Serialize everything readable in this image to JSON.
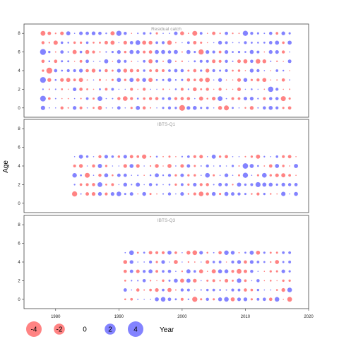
{
  "chart_data": {
    "type": "scatter",
    "subtype": "bubble-residuals",
    "ylabel": "Age",
    "xlabel": "Year",
    "xlim": [
      1975,
      2020
    ],
    "x_ticks": [
      1980,
      1990,
      2000,
      2010,
      2020
    ],
    "ylim": [
      -1,
      9
    ],
    "y_ticks": [
      0,
      2,
      4,
      6,
      8
    ],
    "ages": [
      0,
      1,
      2,
      3,
      4,
      5,
      6,
      7,
      8
    ],
    "colors": {
      "negative": "#ff5a5a",
      "positive": "#5a5aff",
      "alpha": 0.75,
      "panel_border": "#444444"
    },
    "legend": {
      "values": [
        -4,
        -2,
        0,
        2,
        4
      ],
      "labels": [
        "-4",
        "-2",
        "0",
        "2",
        "4"
      ],
      "placement": "bottom"
    },
    "panels": [
      {
        "title": "Residual catch",
        "years": [
          1978,
          2017
        ],
        "ages": [
          0,
          8
        ],
        "emphasis": [
          {
            "year": 1978,
            "age": 0,
            "value": 1.4
          },
          {
            "year": 1978,
            "age": 1,
            "value": 2.4
          },
          {
            "year": 1978,
            "age": 3,
            "value": 2.5
          },
          {
            "year": 1978,
            "age": 6,
            "value": 2.6
          },
          {
            "year": 1978,
            "age": 8,
            "value": -1.7
          },
          {
            "year": 1979,
            "age": 4,
            "value": -2.6
          },
          {
            "year": 1980,
            "age": 7,
            "value": -1.4
          },
          {
            "year": 1983,
            "age": 6,
            "value": -1.3
          },
          {
            "year": 1987,
            "age": 1,
            "value": 1.7
          },
          {
            "year": 1990,
            "age": 8,
            "value": 2.0
          },
          {
            "year": 1991,
            "age": 1,
            "value": -1.6
          },
          {
            "year": 1993,
            "age": 7,
            "value": 1.7
          },
          {
            "year": 1998,
            "age": 7,
            "value": -1.5
          },
          {
            "year": 2000,
            "age": 0,
            "value": -2.4
          },
          {
            "year": 2002,
            "age": 8,
            "value": -1.8
          },
          {
            "year": 2003,
            "age": 6,
            "value": -2.0
          },
          {
            "year": 2004,
            "age": 3,
            "value": -1.6
          },
          {
            "year": 2006,
            "age": 1,
            "value": 1.7
          },
          {
            "year": 2007,
            "age": 0,
            "value": -1.8
          },
          {
            "year": 2010,
            "age": 8,
            "value": 2.0
          },
          {
            "year": 2012,
            "age": 5,
            "value": -1.6
          },
          {
            "year": 2014,
            "age": 2,
            "value": 2.1
          },
          {
            "year": 2016,
            "age": 1,
            "value": -1.8
          }
        ]
      },
      {
        "title": "IBTS-Q1",
        "years": [
          1983,
          2018
        ],
        "ages": [
          1,
          5
        ],
        "emphasis": [
          {
            "year": 1983,
            "age": 1,
            "value": -2.0
          },
          {
            "year": 1983,
            "age": 3,
            "value": 1.5
          },
          {
            "year": 1985,
            "age": 3,
            "value": -1.8
          },
          {
            "year": 1987,
            "age": 2,
            "value": 1.7
          },
          {
            "year": 1990,
            "age": 1,
            "value": 1.6
          },
          {
            "year": 1994,
            "age": 5,
            "value": -1.4
          },
          {
            "year": 2003,
            "age": 1,
            "value": -1.6
          },
          {
            "year": 2004,
            "age": 3,
            "value": 1.6
          },
          {
            "year": 2010,
            "age": 4,
            "value": 2.2
          },
          {
            "year": 2010,
            "age": 3,
            "value": 2.0
          },
          {
            "year": 2012,
            "age": 2,
            "value": 1.9
          },
          {
            "year": 2013,
            "age": 3,
            "value": 1.6
          },
          {
            "year": 2016,
            "age": 1,
            "value": 1.4
          }
        ]
      },
      {
        "title": "IBTS-Q3",
        "years": [
          1991,
          2017
        ],
        "ages": [
          0,
          5
        ],
        "emphasis": [
          {
            "year": 1992,
            "age": 5,
            "value": 1.6
          },
          {
            "year": 1997,
            "age": 0,
            "value": 1.6
          },
          {
            "year": 2002,
            "age": 0,
            "value": -2.0
          },
          {
            "year": 2002,
            "age": 5,
            "value": -1.6
          },
          {
            "year": 2007,
            "age": 0,
            "value": 1.6
          },
          {
            "year": 2007,
            "age": 5,
            "value": 1.5
          },
          {
            "year": 2009,
            "age": 3,
            "value": -1.7
          },
          {
            "year": 2009,
            "age": 2,
            "value": 1.5
          },
          {
            "year": 2015,
            "age": 0,
            "value": 1.6
          },
          {
            "year": 2017,
            "age": 1,
            "value": 1.6
          },
          {
            "year": 2017,
            "age": 0,
            "value": -1.7
          }
        ]
      }
    ]
  }
}
